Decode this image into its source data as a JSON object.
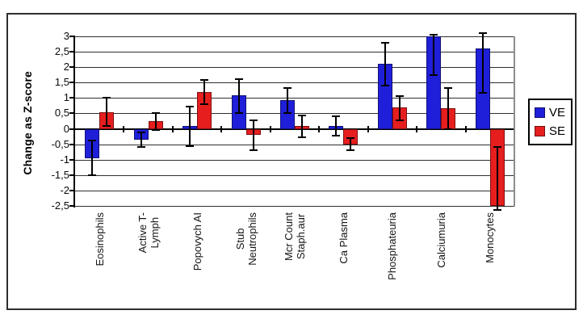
{
  "chart_data": {
    "type": "bar",
    "ylabel": "Change as Z-score",
    "ylim": [
      -2.5,
      3
    ],
    "ytick_step": 0.5,
    "ytick_labels": [
      "3",
      "2,5",
      "2",
      "1,5",
      "1",
      "0,5",
      "0",
      "-0,5",
      "-1",
      "-1,5",
      "-2",
      "-2,5"
    ],
    "grid": true,
    "legend_position": "right",
    "categories": [
      "Eosinophils",
      "Active T-\nLymph",
      "Popovych AI",
      "Stub\nNeutrophils",
      "Mcr Count\nStaph.aur",
      "Ca Plasma",
      "Phosphateuria",
      "Calciumuria",
      "Monocytes"
    ],
    "series": [
      {
        "name": "VE",
        "color": "#1f1fd9",
        "values": [
          -0.95,
          -0.35,
          0.08,
          1.08,
          0.92,
          0.08,
          2.12,
          3.0,
          2.62
        ],
        "error_low": [
          -1.5,
          -0.59,
          -0.56,
          0.52,
          0.5,
          -0.22,
          1.4,
          1.73,
          1.16
        ],
        "error_high": [
          -0.38,
          -0.12,
          0.72,
          1.6,
          1.33,
          0.42,
          2.8,
          3.05,
          3.1
        ]
      },
      {
        "name": "SE",
        "color": "#e61e1e",
        "values": [
          0.55,
          0.25,
          1.18,
          -0.2,
          0.08,
          -0.5,
          0.7,
          0.68,
          -2.5
        ],
        "error_low": [
          0.1,
          -0.03,
          0.8,
          -0.68,
          -0.28,
          -0.7,
          0.28,
          0.0,
          -2.62
        ],
        "error_high": [
          1.0,
          0.5,
          1.58,
          0.28,
          0.44,
          -0.3,
          1.05,
          1.32,
          -0.6
        ]
      }
    ]
  }
}
